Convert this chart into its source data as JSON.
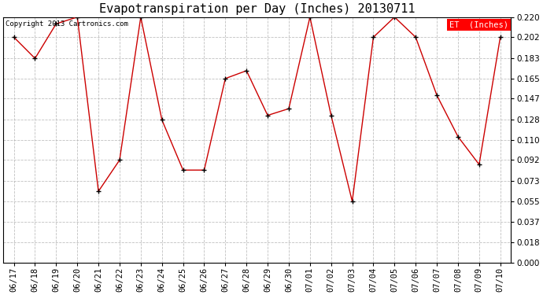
{
  "title": "Evapotranspiration per Day (Inches) 20130711",
  "copyright": "Copyright 2013 Cartronics.com",
  "legend_label": "ET  (Inches)",
  "line_color": "#cc0000",
  "marker_color": "#000000",
  "background_color": "#ffffff",
  "grid_color": "#b0b0b0",
  "dates": [
    "06/17",
    "06/18",
    "06/19",
    "06/20",
    "06/21",
    "06/22",
    "06/23",
    "06/24",
    "06/25",
    "06/26",
    "06/27",
    "06/28",
    "06/29",
    "06/30",
    "07/01",
    "07/02",
    "07/03",
    "07/04",
    "07/05",
    "07/06",
    "07/07",
    "07/08",
    "07/09",
    "07/10"
  ],
  "values": [
    0.202,
    0.183,
    0.214,
    0.22,
    0.064,
    0.092,
    0.22,
    0.128,
    0.083,
    0.083,
    0.165,
    0.172,
    0.132,
    0.138,
    0.22,
    0.132,
    0.055,
    0.202,
    0.22,
    0.202,
    0.15,
    0.113,
    0.088,
    0.202
  ],
  "ylim": [
    0.0,
    0.22
  ],
  "yticks": [
    0.0,
    0.018,
    0.037,
    0.055,
    0.073,
    0.092,
    0.11,
    0.128,
    0.147,
    0.165,
    0.183,
    0.202,
    0.22
  ],
  "title_fontsize": 11,
  "tick_fontsize": 7.5,
  "copyright_fontsize": 6.5
}
